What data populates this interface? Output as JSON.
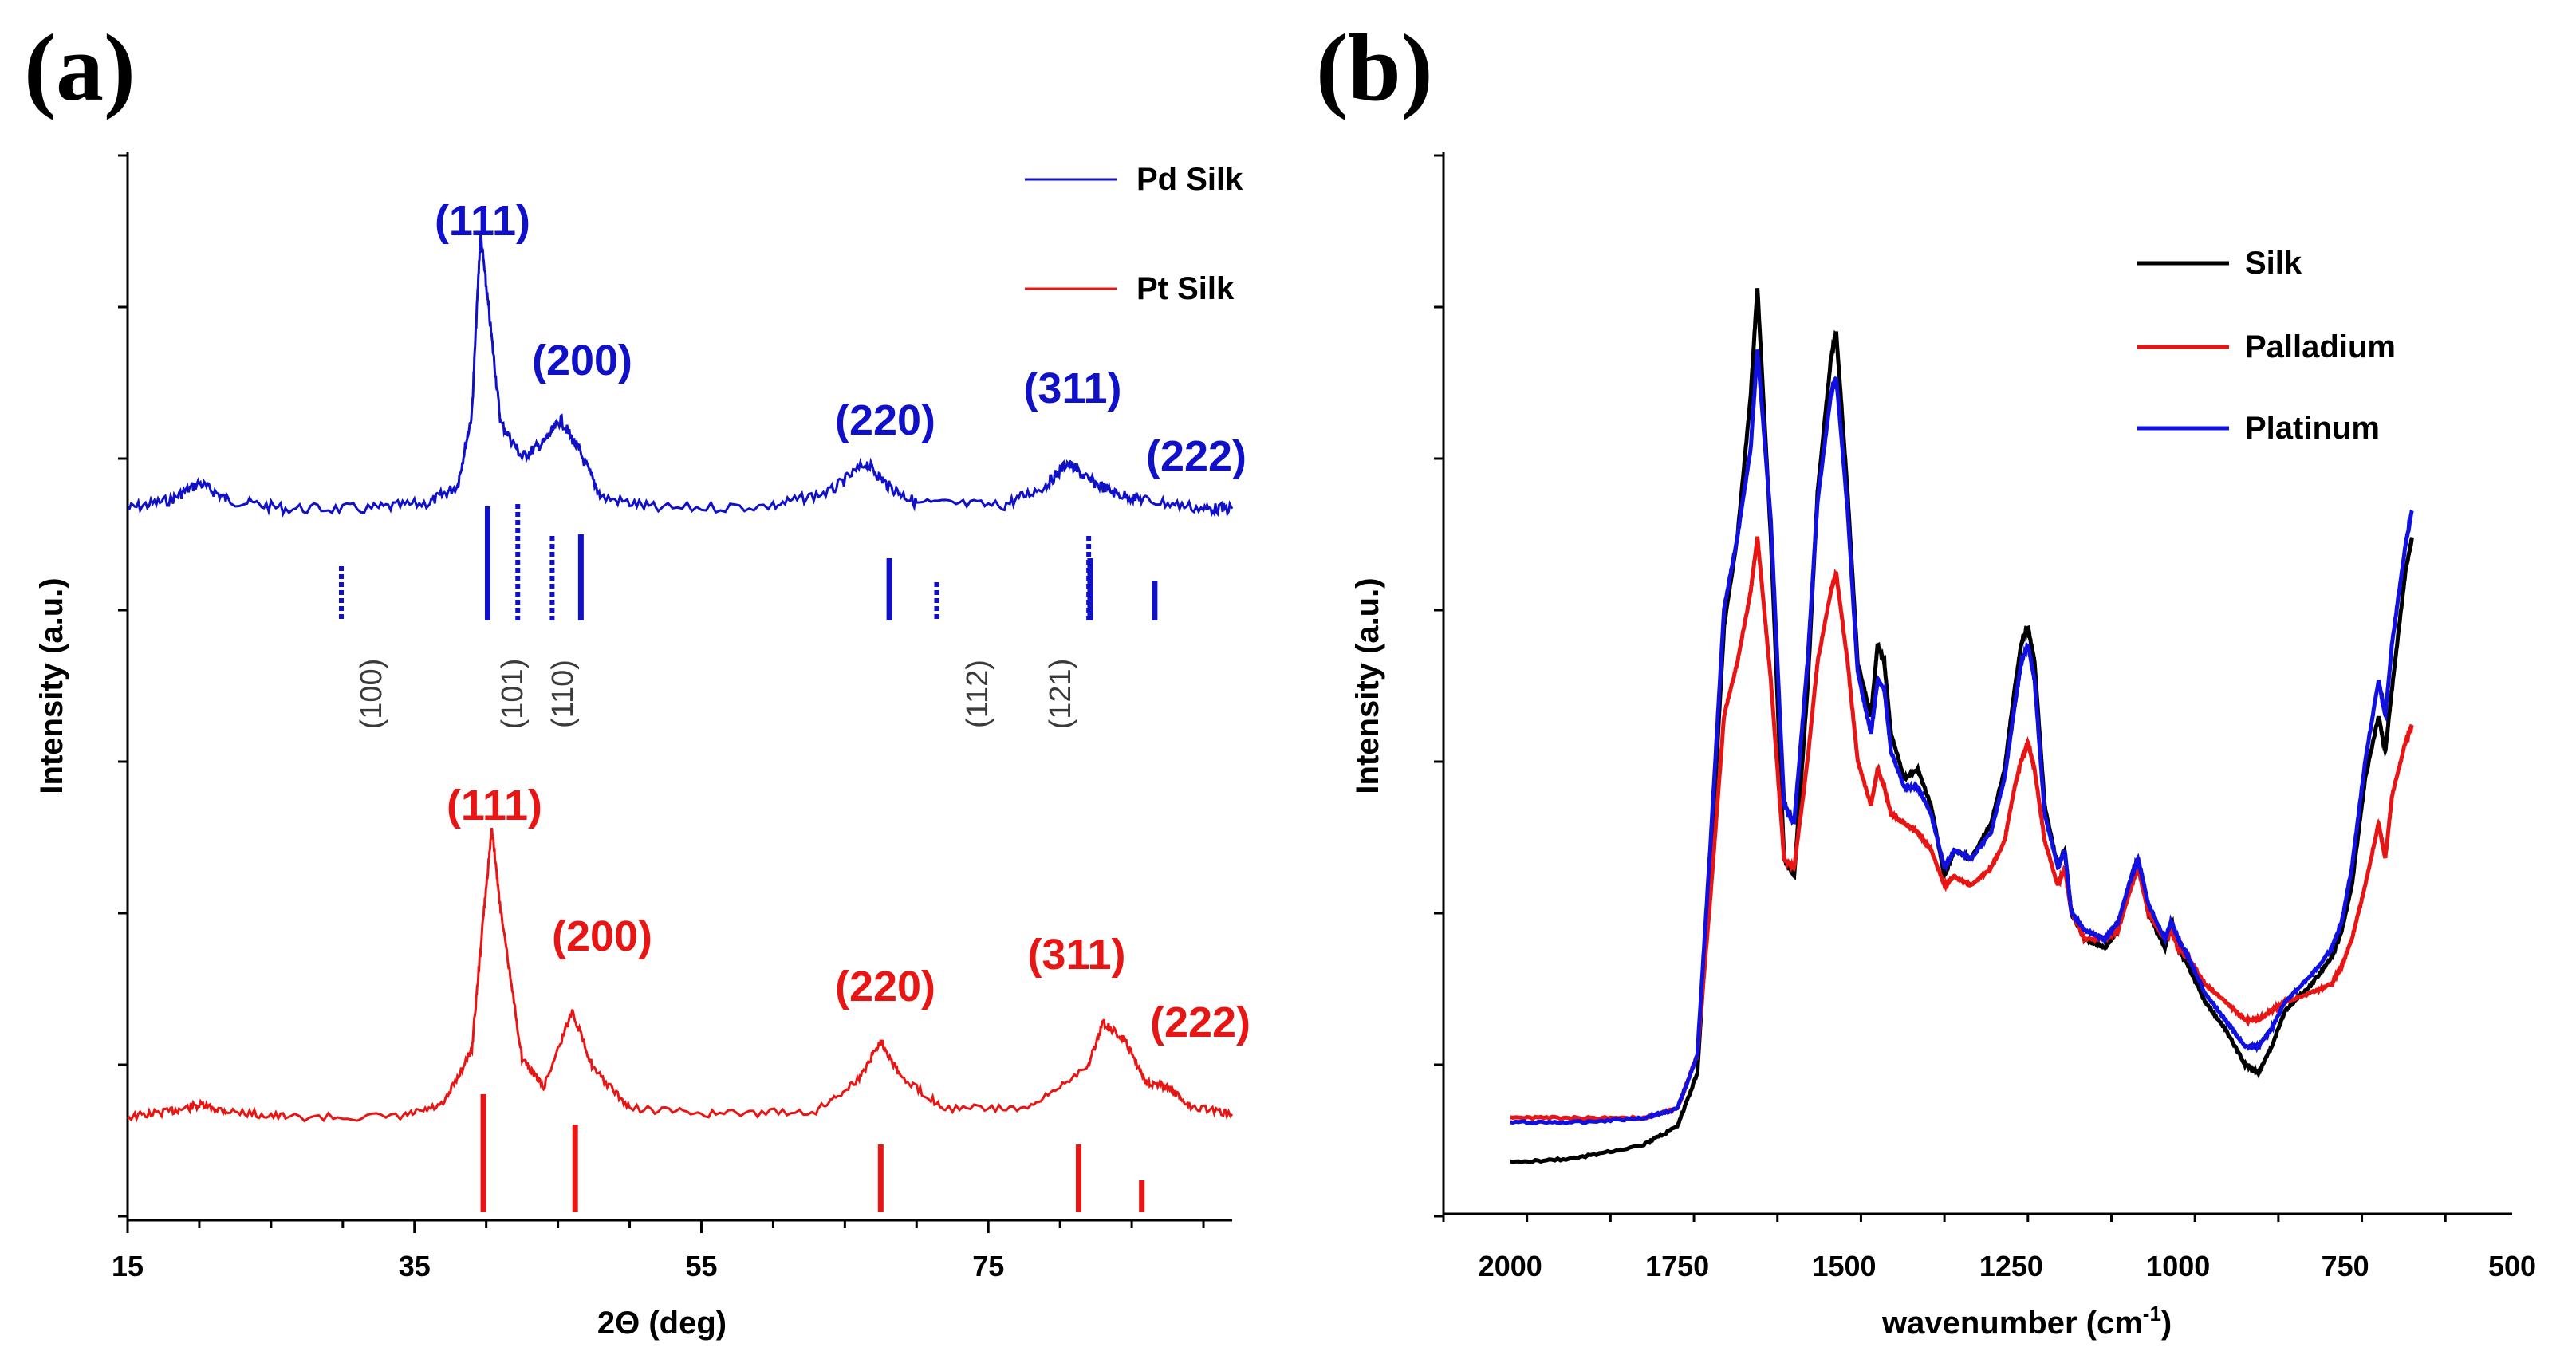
{
  "chart_data": [
    {
      "panel": "(a)",
      "type": "line",
      "xlabel": "2Θ  (deg)",
      "ylabel": "Intensity (a.u.)",
      "xlim": [
        15,
        92
      ],
      "xticks": [
        15,
        35,
        55,
        75
      ],
      "xtick_labels": [
        "15",
        "35",
        "55",
        "75"
      ],
      "yticks_labeled": false,
      "legend": [
        "Pd Silk",
        "Pt Silk"
      ],
      "colors": {
        "pd": "#1010c8",
        "pt": "#e81515"
      },
      "series": [
        {
          "name": "Pd Silk",
          "color": "#1010c8",
          "x": [
            15,
            18,
            20,
            22,
            26,
            32,
            36,
            38,
            39,
            39.6,
            40.2,
            41,
            42.5,
            44,
            45.2,
            46.5,
            48,
            52,
            60,
            64,
            66.5,
            68,
            70,
            76,
            79,
            80.5,
            82,
            84,
            86,
            90,
            92
          ],
          "y": [
            0.02,
            0.05,
            0.11,
            0.05,
            0.02,
            0.02,
            0.04,
            0.1,
            0.35,
            0.98,
            0.7,
            0.32,
            0.2,
            0.25,
            0.33,
            0.22,
            0.06,
            0.02,
            0.03,
            0.08,
            0.18,
            0.1,
            0.04,
            0.03,
            0.1,
            0.18,
            0.12,
            0.07,
            0.05,
            0.02,
            0.02
          ]
        },
        {
          "name": "Pt Silk",
          "color": "#e81515",
          "x": [
            15,
            18,
            20,
            22,
            26,
            34,
            37,
            39,
            39.8,
            40.4,
            41,
            42.5,
            44,
            46,
            47.5,
            50,
            56,
            63,
            66,
            67.5,
            69,
            72,
            78,
            82,
            83,
            84.5,
            86,
            87.5,
            89,
            92
          ],
          "y": [
            0.02,
            0.04,
            0.06,
            0.04,
            0.02,
            0.02,
            0.06,
            0.25,
            0.7,
            1.0,
            0.72,
            0.22,
            0.12,
            0.38,
            0.18,
            0.05,
            0.03,
            0.04,
            0.15,
            0.28,
            0.15,
            0.05,
            0.05,
            0.2,
            0.34,
            0.28,
            0.14,
            0.12,
            0.06,
            0.03
          ]
        }
      ],
      "pd_peak_labels": [
        "(111)",
        "(200)",
        "(220)",
        "(311)",
        "(222)"
      ],
      "pt_peak_labels": [
        "(111)",
        "(200)",
        "(220)",
        "(311)",
        "(222)"
      ],
      "pd_reference_lines": [
        40.1,
        46.6,
        68.1,
        82.1,
        86.6
      ],
      "pdo_reference_lines": [
        29.9,
        42.2,
        44.6,
        71.4,
        82.0
      ],
      "pdo_labels": [
        "(100)",
        "(101)",
        "(110)",
        "(112)",
        "(121)"
      ],
      "pt_reference_lines": [
        39.8,
        46.2,
        67.5,
        81.3,
        85.7
      ]
    },
    {
      "panel": "(b)",
      "type": "line",
      "xlabel": "wavenumber (cm",
      "xlabel_sup": "-1",
      "xlabel_close": ")",
      "ylabel": "Intensity (a.u.)",
      "xlim": [
        2100,
        500
      ],
      "xticks": [
        2000,
        1750,
        1500,
        1250,
        1000,
        750,
        500
      ],
      "xtick_labels": [
        "2000",
        "1750",
        "1500",
        "1250",
        "1000",
        "750",
        "500"
      ],
      "yticks_labeled": false,
      "legend": [
        "Silk",
        "Palladium",
        "Platinum"
      ],
      "series": [
        {
          "name": "Silk",
          "color": "#000000",
          "x": [
            2000,
            1900,
            1800,
            1750,
            1720,
            1700,
            1680,
            1660,
            1640,
            1630,
            1610,
            1590,
            1575,
            1555,
            1540,
            1520,
            1512,
            1495,
            1480,
            1460,
            1450,
            1440,
            1430,
            1410,
            1390,
            1370,
            1350,
            1335,
            1310,
            1280,
            1260,
            1245,
            1235,
            1225,
            1215,
            1200,
            1180,
            1170,
            1160,
            1140,
            1110,
            1090,
            1070,
            1060,
            1045,
            1020,
            1010,
            1000,
            985,
            960,
            930,
            900,
            880,
            860,
            840,
            800,
            770,
            755,
            740,
            720,
            700,
            690,
            680,
            660,
            650
          ],
          "y": [
            0.02,
            0.025,
            0.04,
            0.06,
            0.12,
            0.35,
            0.62,
            0.72,
            0.88,
            1.0,
            0.72,
            0.36,
            0.34,
            0.55,
            0.77,
            0.92,
            0.95,
            0.77,
            0.58,
            0.52,
            0.6,
            0.58,
            0.5,
            0.45,
            0.46,
            0.42,
            0.34,
            0.37,
            0.36,
            0.4,
            0.46,
            0.55,
            0.6,
            0.62,
            0.58,
            0.42,
            0.35,
            0.37,
            0.3,
            0.27,
            0.26,
            0.28,
            0.34,
            0.36,
            0.3,
            0.26,
            0.29,
            0.26,
            0.24,
            0.2,
            0.17,
            0.13,
            0.12,
            0.15,
            0.19,
            0.22,
            0.25,
            0.28,
            0.33,
            0.45,
            0.52,
            0.48,
            0.55,
            0.68,
            0.72
          ]
        },
        {
          "name": "Palladium",
          "color": "#e81515",
          "x": [
            2000,
            1900,
            1800,
            1750,
            1720,
            1700,
            1680,
            1660,
            1640,
            1630,
            1610,
            1590,
            1575,
            1555,
            1540,
            1520,
            1512,
            1495,
            1480,
            1460,
            1450,
            1440,
            1430,
            1410,
            1390,
            1370,
            1350,
            1335,
            1310,
            1280,
            1260,
            1245,
            1235,
            1225,
            1215,
            1200,
            1180,
            1170,
            1160,
            1140,
            1110,
            1090,
            1070,
            1060,
            1045,
            1020,
            1010,
            1000,
            985,
            960,
            930,
            900,
            880,
            860,
            840,
            800,
            770,
            755,
            740,
            720,
            700,
            690,
            680,
            660,
            650
          ],
          "y": [
            0.07,
            0.07,
            0.07,
            0.08,
            0.14,
            0.32,
            0.52,
            0.58,
            0.66,
            0.72,
            0.56,
            0.36,
            0.35,
            0.47,
            0.58,
            0.66,
            0.68,
            0.58,
            0.47,
            0.42,
            0.46,
            0.44,
            0.41,
            0.4,
            0.39,
            0.37,
            0.33,
            0.34,
            0.33,
            0.35,
            0.38,
            0.44,
            0.47,
            0.49,
            0.46,
            0.38,
            0.33,
            0.35,
            0.3,
            0.27,
            0.27,
            0.28,
            0.33,
            0.35,
            0.3,
            0.27,
            0.28,
            0.26,
            0.25,
            0.22,
            0.2,
            0.18,
            0.18,
            0.19,
            0.2,
            0.21,
            0.22,
            0.24,
            0.27,
            0.33,
            0.4,
            0.36,
            0.43,
            0.49,
            0.51
          ]
        },
        {
          "name": "Platinum",
          "color": "#1010e0",
          "x": [
            2000,
            1900,
            1800,
            1750,
            1720,
            1700,
            1680,
            1660,
            1640,
            1630,
            1610,
            1590,
            1575,
            1555,
            1540,
            1520,
            1512,
            1495,
            1480,
            1460,
            1450,
            1440,
            1430,
            1410,
            1390,
            1370,
            1350,
            1335,
            1310,
            1280,
            1260,
            1245,
            1235,
            1225,
            1215,
            1200,
            1180,
            1170,
            1160,
            1140,
            1110,
            1090,
            1070,
            1060,
            1045,
            1020,
            1010,
            1000,
            985,
            960,
            930,
            900,
            880,
            860,
            840,
            800,
            770,
            755,
            740,
            720,
            700,
            690,
            680,
            660,
            650
          ],
          "y": [
            0.065,
            0.065,
            0.07,
            0.08,
            0.14,
            0.38,
            0.64,
            0.72,
            0.82,
            0.93,
            0.74,
            0.42,
            0.4,
            0.58,
            0.76,
            0.88,
            0.9,
            0.75,
            0.57,
            0.5,
            0.56,
            0.55,
            0.48,
            0.44,
            0.44,
            0.41,
            0.35,
            0.37,
            0.36,
            0.39,
            0.45,
            0.53,
            0.58,
            0.6,
            0.56,
            0.41,
            0.35,
            0.37,
            0.3,
            0.28,
            0.27,
            0.29,
            0.34,
            0.36,
            0.31,
            0.27,
            0.29,
            0.27,
            0.25,
            0.21,
            0.18,
            0.15,
            0.15,
            0.17,
            0.2,
            0.23,
            0.26,
            0.29,
            0.35,
            0.47,
            0.56,
            0.52,
            0.6,
            0.71,
            0.75
          ]
        }
      ]
    }
  ]
}
